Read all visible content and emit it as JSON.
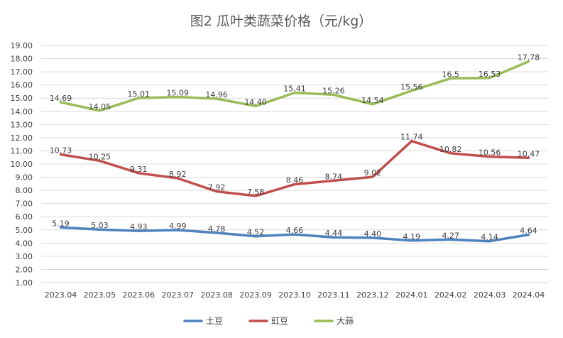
{
  "chart_data": {
    "type": "line",
    "title": "图2   瓜叶类蔬菜价格（元/kg）",
    "categories": [
      "2023.04",
      "2023.05",
      "2023.06",
      "2023.07",
      "2023.08",
      "2023.09",
      "2023.10",
      "2023.11",
      "2023.12",
      "2024.01",
      "2024.02",
      "2024.03",
      "2024.04"
    ],
    "ylim": [
      1,
      19
    ],
    "ytick_step": 1,
    "ytick_decimals": 2,
    "grid": true,
    "legend_position": "bottom",
    "series": [
      {
        "name": "土豆",
        "color": "#4f81bd",
        "values": [
          5.19,
          5.03,
          4.93,
          4.99,
          4.78,
          4.52,
          4.66,
          4.44,
          4.4,
          4.19,
          4.27,
          4.14,
          4.64
        ],
        "labels": [
          "5.19",
          "5.03",
          "4.93",
          "4.99",
          "4.78",
          "4.52",
          "4.66",
          "4.44",
          "4.40",
          "4.19",
          "4.27",
          "4.14",
          "4.64"
        ]
      },
      {
        "name": "豇豆",
        "color": "#c0504d",
        "values": [
          10.73,
          10.25,
          9.31,
          8.92,
          7.92,
          7.58,
          8.46,
          8.74,
          9.02,
          11.74,
          10.82,
          10.56,
          10.47
        ],
        "labels": [
          "10.73",
          "10.25",
          "9.31",
          "8.92",
          "7.92",
          "7.58",
          "8.46",
          "8.74",
          "9.02",
          "11.74",
          "10.82",
          "10.56",
          "10.47"
        ]
      },
      {
        "name": "大蒜",
        "color": "#9bbb59",
        "values": [
          14.69,
          14.05,
          15.01,
          15.09,
          14.96,
          14.4,
          15.41,
          15.26,
          14.54,
          15.56,
          16.5,
          16.53,
          17.78
        ],
        "labels": [
          "14.69",
          "14.05",
          "15.01",
          "15.09",
          "14.96",
          "14.40",
          "15.41",
          "15.26",
          "14.54",
          "15.56",
          "16.5",
          "16.53",
          "17.78"
        ]
      }
    ]
  }
}
